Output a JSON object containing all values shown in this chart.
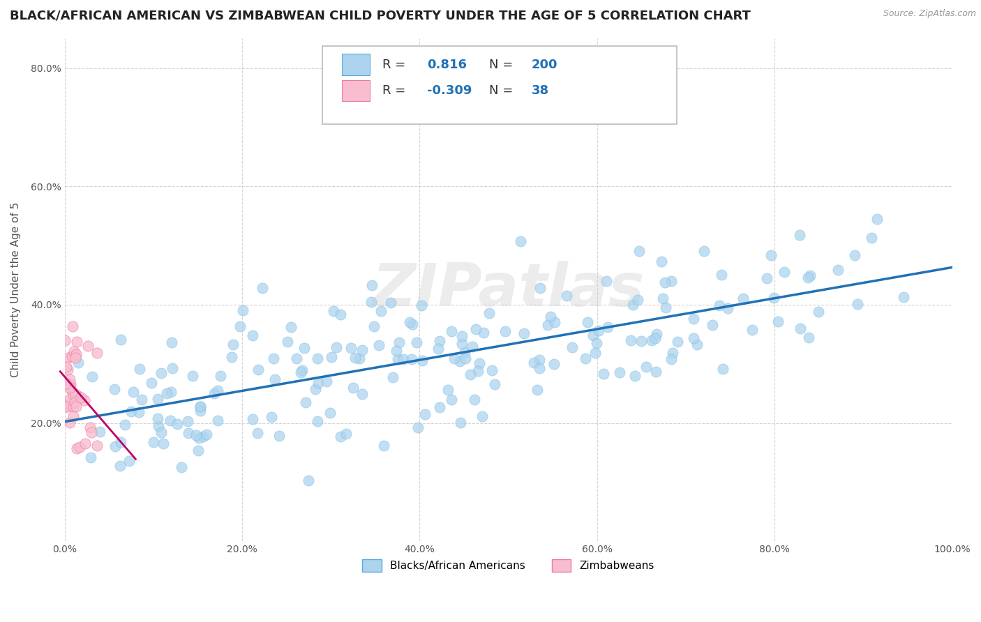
{
  "title": "BLACK/AFRICAN AMERICAN VS ZIMBABWEAN CHILD POVERTY UNDER THE AGE OF 5 CORRELATION CHART",
  "source": "Source: ZipAtlas.com",
  "ylabel": "Child Poverty Under the Age of 5",
  "xlim": [
    0.0,
    1.0
  ],
  "ylim": [
    0.0,
    0.85
  ],
  "x_ticks": [
    0.0,
    0.2,
    0.4,
    0.6,
    0.8,
    1.0
  ],
  "x_tick_labels": [
    "0.0%",
    "20.0%",
    "40.0%",
    "60.0%",
    "80.0%",
    "100.0%"
  ],
  "y_ticks": [
    0.0,
    0.2,
    0.4,
    0.6,
    0.8
  ],
  "y_tick_labels": [
    "",
    "20.0%",
    "40.0%",
    "60.0%",
    "80.0%"
  ],
  "blue_face_color": "#acd4ee",
  "blue_edge_color": "#5baad6",
  "pink_face_color": "#f9bdd0",
  "pink_edge_color": "#e87ba0",
  "regression_blue_color": "#2171b5",
  "regression_pink_color": "#c0006a",
  "legend_blue_label": "Blacks/African Americans",
  "legend_pink_label": "Zimbabweans",
  "r_blue": 0.816,
  "n_blue": 200,
  "r_pink": -0.309,
  "n_pink": 38,
  "watermark": "ZIPatlas",
  "title_fontsize": 13,
  "axis_label_fontsize": 11,
  "tick_fontsize": 10,
  "blue_seed": 12345,
  "pink_seed": 9999,
  "background_color": "#ffffff",
  "grid_color": "#c8c8c8"
}
